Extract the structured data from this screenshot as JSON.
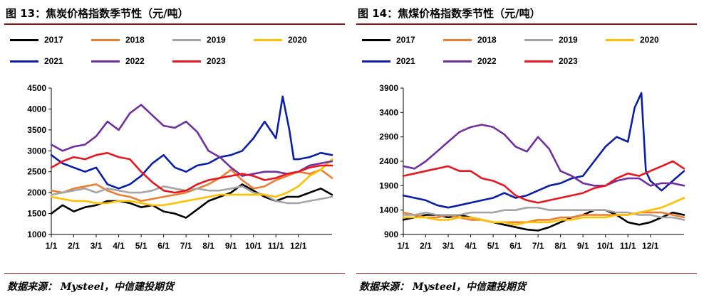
{
  "charts": [
    {
      "title": "图 13：焦炭价格指数季节性（元/吨）",
      "source": "数据来源： Mysteel，中信建投期货",
      "chart_data": {
        "type": "line",
        "title": "",
        "xlabel": "",
        "ylabel": "",
        "ylim": [
          1000,
          4500
        ],
        "yticks": [
          1000,
          1500,
          2000,
          2500,
          3000,
          3500,
          4000,
          4500
        ],
        "xticks": [
          "1/1",
          "2/1",
          "3/1",
          "4/1",
          "5/1",
          "6/1",
          "7/1",
          "8/1",
          "9/1",
          "10/1",
          "11/1",
          "12/1"
        ],
        "xlim": [
          0,
          12.5
        ],
        "legend_position": "top",
        "grid": false,
        "series": [
          {
            "name": "2017",
            "color": "#000000",
            "x": [
              0,
              0.5,
              1,
              1.5,
              2,
              2.5,
              3,
              3.5,
              4,
              4.5,
              5,
              5.5,
              6,
              6.5,
              7,
              7.5,
              8,
              8.5,
              9,
              9.5,
              10,
              10.5,
              11,
              11.5,
              12,
              12.5
            ],
            "y": [
              1500,
              1700,
              1550,
              1650,
              1700,
              1800,
              1800,
              1750,
              1650,
              1700,
              1550,
              1500,
              1400,
              1600,
              1800,
              1900,
              2000,
              2200,
              2050,
              1900,
              1800,
              1900,
              1900,
              2000,
              2100,
              1950
            ]
          },
          {
            "name": "2018",
            "color": "#ed7d31",
            "x": [
              0,
              0.5,
              1,
              1.5,
              2,
              2.5,
              3,
              3.5,
              4,
              4.5,
              5,
              5.5,
              6,
              6.5,
              7,
              7.5,
              8,
              8.5,
              9,
              9.5,
              10,
              10.5,
              11,
              11.5,
              12,
              12.5
            ],
            "y": [
              2050,
              2000,
              2100,
              2150,
              2200,
              2050,
              1950,
              1900,
              1800,
              1850,
              1900,
              1950,
              2000,
              2100,
              2200,
              2350,
              2550,
              2300,
              2100,
              2150,
              2300,
              2400,
              2500,
              2450,
              2550,
              2350
            ]
          },
          {
            "name": "2019",
            "color": "#a5a5a5",
            "x": [
              0,
              0.5,
              1,
              1.5,
              2,
              2.5,
              3,
              3.5,
              4,
              4.5,
              5,
              5.5,
              6,
              6.5,
              7,
              7.5,
              8,
              8.5,
              9,
              9.5,
              10,
              10.5,
              11,
              11.5,
              12,
              12.5
            ],
            "y": [
              1950,
              2000,
              2050,
              2100,
              2000,
              2100,
              2050,
              2000,
              2000,
              2050,
              2150,
              2100,
              2050,
              2100,
              2050,
              2050,
              2100,
              2150,
              2000,
              1950,
              1800,
              1750,
              1750,
              1800,
              1850,
              1900
            ]
          },
          {
            "name": "2020",
            "color": "#ffc000",
            "x": [
              0,
              0.5,
              1,
              1.5,
              2,
              2.5,
              3,
              3.5,
              4,
              4.5,
              5,
              5.5,
              6,
              6.5,
              7,
              7.5,
              8,
              8.5,
              9,
              9.5,
              10,
              10.5,
              11,
              11.5,
              12,
              12.5
            ],
            "y": [
              1900,
              1850,
              1800,
              1800,
              1750,
              1750,
              1800,
              1800,
              1750,
              1700,
              1700,
              1750,
              1800,
              1850,
              1900,
              1950,
              1950,
              1950,
              1950,
              1950,
              1900,
              2000,
              2150,
              2400,
              2550,
              2800
            ]
          },
          {
            "name": "2021",
            "color": "#0b1ea8",
            "x": [
              0,
              0.5,
              1,
              1.5,
              2,
              2.5,
              3,
              3.5,
              4,
              4.5,
              5,
              5.5,
              6,
              6.5,
              7,
              7.5,
              8,
              8.5,
              9,
              9.5,
              10,
              10.3,
              10.6,
              10.8,
              11,
              11.5,
              12,
              12.5
            ],
            "y": [
              2900,
              2700,
              2600,
              2500,
              2600,
              2200,
              2100,
              2200,
              2400,
              2700,
              2900,
              2600,
              2500,
              2650,
              2700,
              2850,
              2900,
              3000,
              3300,
              3700,
              3300,
              4300,
              3500,
              2800,
              2800,
              2850,
              2950,
              2900
            ]
          },
          {
            "name": "2022",
            "color": "#7030a0",
            "x": [
              0,
              0.5,
              1,
              1.5,
              2,
              2.5,
              3,
              3.5,
              4,
              4.5,
              5,
              5.5,
              6,
              6.5,
              7,
              7.5,
              8,
              8.5,
              9,
              9.5,
              10,
              10.5,
              11,
              11.5,
              12,
              12.5
            ],
            "y": [
              3150,
              3000,
              3100,
              3150,
              3350,
              3700,
              3500,
              3900,
              4100,
              3850,
              3600,
              3550,
              3700,
              3450,
              3000,
              2850,
              2600,
              2400,
              2450,
              2500,
              2500,
              2450,
              2500,
              2650,
              2700,
              2750
            ]
          },
          {
            "name": "2023",
            "color": "#e8161e",
            "x": [
              0,
              0.5,
              1,
              1.5,
              2,
              2.5,
              3,
              3.5,
              4,
              4.5,
              5,
              5.5,
              6,
              6.5,
              7,
              7.5,
              8,
              8.5,
              9,
              9.5,
              10,
              10.5,
              11,
              11.5,
              12,
              12.5
            ],
            "y": [
              2600,
              2750,
              2850,
              2800,
              2900,
              2950,
              2850,
              2800,
              2500,
              2250,
              2050,
              2000,
              2050,
              2200,
              2300,
              2350,
              2400,
              2450,
              2400,
              2300,
              2350,
              2450,
              2500,
              2600,
              2650,
              2650
            ]
          }
        ]
      }
    },
    {
      "title": "图 14：焦煤价格指数季节性（元/吨）",
      "source": "数据来源： Mysteel，中信建投期货",
      "chart_data": {
        "type": "line",
        "title": "",
        "xlabel": "",
        "ylabel": "",
        "ylim": [
          900,
          3900
        ],
        "yticks": [
          900,
          1400,
          1900,
          2400,
          2900,
          3400,
          3900
        ],
        "xticks": [
          "1/1",
          "2/1",
          "3/1",
          "4/1",
          "5/1",
          "6/1",
          "7/1",
          "8/1",
          "9/1",
          "10/1",
          "11/1",
          "12/1"
        ],
        "xlim": [
          0,
          12.5
        ],
        "legend_position": "top",
        "grid": false,
        "series": [
          {
            "name": "2017",
            "color": "#000000",
            "x": [
              0,
              0.5,
              1,
              1.5,
              2,
              2.5,
              3,
              3.5,
              4,
              4.5,
              5,
              5.5,
              6,
              6.5,
              7,
              7.5,
              8,
              8.5,
              9,
              9.5,
              10,
              10.5,
              11,
              11.5,
              12,
              12.5
            ],
            "y": [
              1200,
              1250,
              1300,
              1300,
              1250,
              1300,
              1250,
              1200,
              1150,
              1100,
              1050,
              1000,
              980,
              1050,
              1150,
              1250,
              1300,
              1400,
              1400,
              1300,
              1150,
              1100,
              1150,
              1250,
              1350,
              1300
            ]
          },
          {
            "name": "2018",
            "color": "#ed7d31",
            "x": [
              0,
              0.5,
              1,
              1.5,
              2,
              2.5,
              3,
              3.5,
              4,
              4.5,
              5,
              5.5,
              6,
              6.5,
              7,
              7.5,
              8,
              8.5,
              9,
              9.5,
              10,
              10.5,
              11,
              11.5,
              12,
              12.5
            ],
            "y": [
              1350,
              1300,
              1250,
              1250,
              1300,
              1250,
              1200,
              1200,
              1150,
              1150,
              1150,
              1150,
              1200,
              1200,
              1250,
              1250,
              1300,
              1300,
              1300,
              1300,
              1300,
              1350,
              1350,
              1350,
              1300,
              1250
            ]
          },
          {
            "name": "2019",
            "color": "#a5a5a5",
            "x": [
              0,
              0.5,
              1,
              1.5,
              2,
              2.5,
              3,
              3.5,
              4,
              4.5,
              5,
              5.5,
              6,
              6.5,
              7,
              7.5,
              8,
              8.5,
              9,
              9.5,
              10,
              10.5,
              11,
              11.5,
              12,
              12.5
            ],
            "y": [
              1300,
              1300,
              1350,
              1300,
              1300,
              1300,
              1350,
              1350,
              1350,
              1400,
              1400,
              1450,
              1450,
              1400,
              1400,
              1400,
              1400,
              1400,
              1400,
              1350,
              1350,
              1300,
              1300,
              1250,
              1250,
              1200
            ]
          },
          {
            "name": "2020",
            "color": "#ffc000",
            "x": [
              0,
              0.5,
              1,
              1.5,
              2,
              2.5,
              3,
              3.5,
              4,
              4.5,
              5,
              5.5,
              6,
              6.5,
              7,
              7.5,
              8,
              8.5,
              9,
              9.5,
              10,
              10.5,
              11,
              11.5,
              12,
              12.5
            ],
            "y": [
              1250,
              1250,
              1250,
              1200,
              1200,
              1250,
              1250,
              1200,
              1150,
              1150,
              1100,
              1150,
              1150,
              1150,
              1200,
              1200,
              1250,
              1250,
              1250,
              1300,
              1300,
              1350,
              1400,
              1450,
              1550,
              1650
            ]
          },
          {
            "name": "2021",
            "color": "#0b1ea8",
            "x": [
              0,
              0.5,
              1,
              1.5,
              2,
              2.5,
              3,
              3.5,
              4,
              4.5,
              5,
              5.5,
              6,
              6.5,
              7,
              7.5,
              8,
              8.5,
              9,
              9.5,
              10,
              10.3,
              10.6,
              10.8,
              11,
              11.5,
              12,
              12.5
            ],
            "y": [
              1700,
              1650,
              1600,
              1500,
              1450,
              1500,
              1550,
              1600,
              1650,
              1750,
              1650,
              1700,
              1800,
              1900,
              1950,
              2050,
              2100,
              2400,
              2700,
              2900,
              2800,
              3500,
              3800,
              2200,
              2000,
              1800,
              2000,
              2200
            ]
          },
          {
            "name": "2022",
            "color": "#7030a0",
            "x": [
              0,
              0.5,
              1,
              1.5,
              2,
              2.5,
              3,
              3.5,
              4,
              4.5,
              5,
              5.5,
              6,
              6.5,
              7,
              7.5,
              8,
              8.5,
              9,
              9.5,
              10,
              10.5,
              11,
              11.5,
              12,
              12.5
            ],
            "y": [
              2300,
              2250,
              2400,
              2600,
              2800,
              3000,
              3100,
              3150,
              3100,
              2950,
              2700,
              2600,
              2900,
              2650,
              2200,
              2100,
              1950,
              1900,
              1900,
              2000,
              2050,
              2050,
              1900,
              1950,
              1950,
              1900
            ]
          },
          {
            "name": "2023",
            "color": "#e8161e",
            "x": [
              0,
              0.5,
              1,
              1.5,
              2,
              2.5,
              3,
              3.5,
              4,
              4.5,
              5,
              5.5,
              6,
              6.5,
              7,
              7.5,
              8,
              8.5,
              9,
              9.5,
              10,
              10.5,
              11,
              11.5,
              12,
              12.5
            ],
            "y": [
              2100,
              2150,
              2200,
              2250,
              2300,
              2200,
              2200,
              2050,
              2000,
              1900,
              1700,
              1600,
              1550,
              1600,
              1650,
              1700,
              1750,
              1850,
              1900,
              2050,
              2150,
              2100,
              2200,
              2300,
              2400,
              2250
            ]
          }
        ]
      }
    }
  ]
}
